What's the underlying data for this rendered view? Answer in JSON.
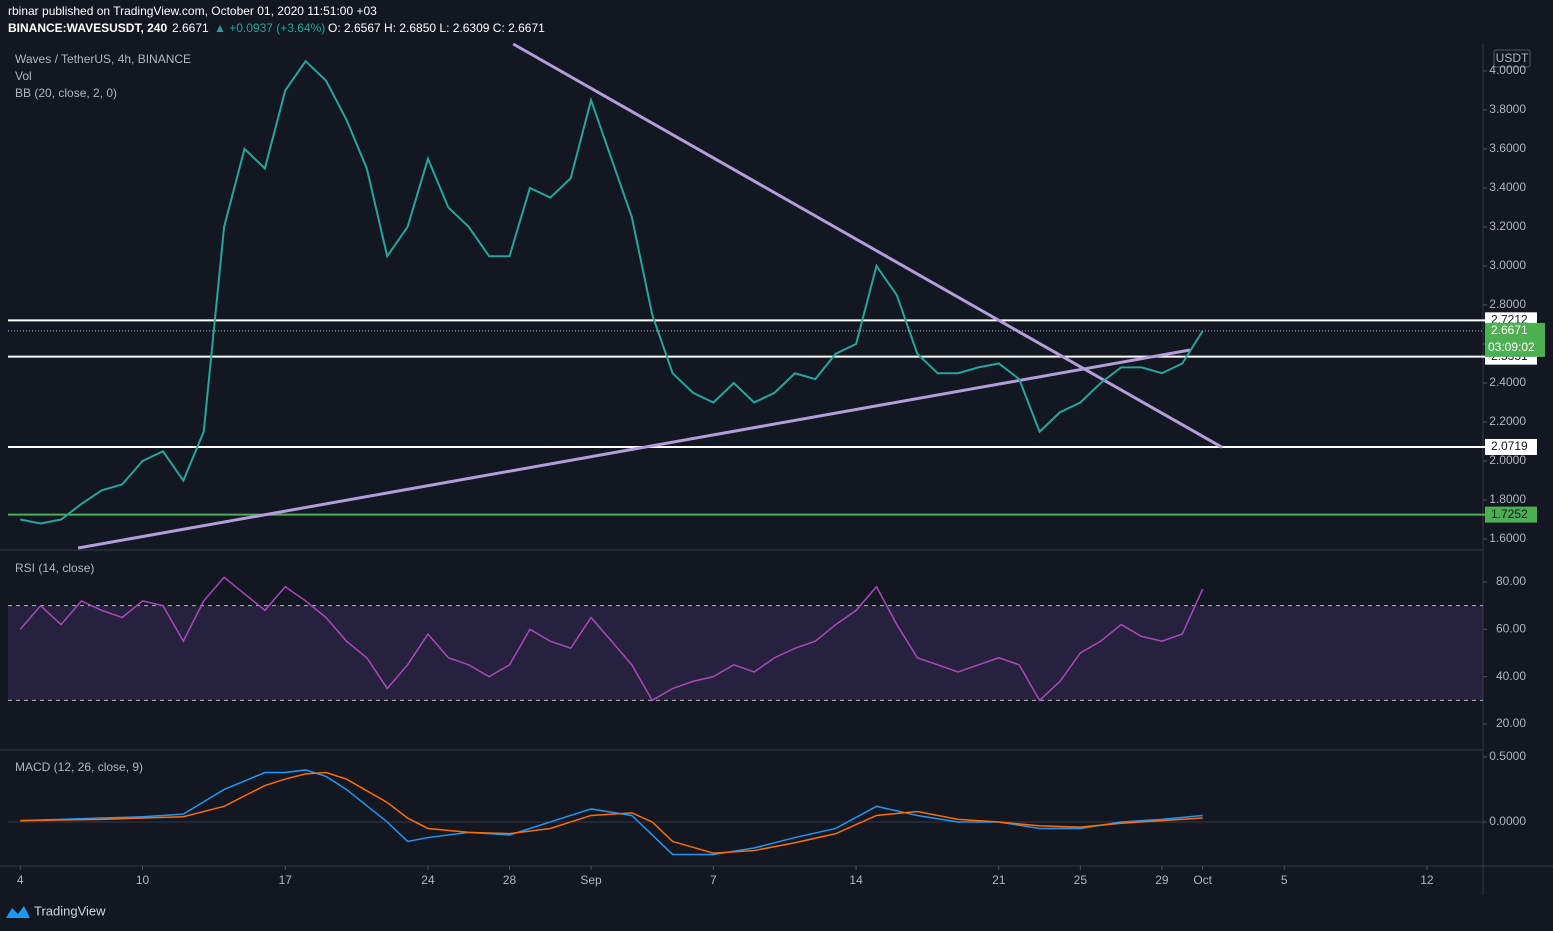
{
  "header": {
    "publisher": "rbinar published on TradingView.com, October 01, 2020 11:51:00 +03",
    "symbol": "BINANCE:WAVESUSDT, 240",
    "last": "2.6671",
    "change": "▲ +0.0937 (+3.64%)",
    "ohlc": "O: 2.6567 H: 2.6850 L: 2.6309 C: 2.6671",
    "currency": "USDT",
    "brand": "TradingView"
  },
  "chart_data": [
    {
      "type": "line",
      "title": "Waves / TetherUS, 4h, BINANCE",
      "legend": [
        "Vol",
        "BB (20, close, 2, 0)"
      ],
      "x": [
        4,
        5,
        6,
        7,
        8,
        9,
        10,
        11,
        12,
        13,
        14,
        15,
        16,
        17,
        18,
        19,
        20,
        21,
        22,
        23,
        24,
        25,
        26,
        27,
        28,
        29,
        30,
        31,
        32,
        33,
        34,
        35,
        36,
        37,
        38,
        39,
        40,
        41,
        42,
        43,
        44,
        45,
        46,
        47,
        48,
        49,
        50,
        51,
        52,
        53,
        54,
        55,
        56,
        57,
        58,
        59,
        60,
        61,
        62
      ],
      "series": [
        {
          "name": "Waves / TetherUS",
          "color": "#26a69a",
          "values": [
            1.7,
            1.68,
            1.7,
            1.78,
            1.85,
            1.88,
            2.0,
            2.05,
            1.9,
            2.15,
            3.2,
            3.6,
            3.5,
            3.9,
            4.05,
            3.95,
            3.75,
            3.5,
            3.05,
            3.2,
            3.55,
            3.3,
            3.2,
            3.05,
            3.05,
            3.4,
            3.35,
            3.45,
            3.85,
            3.55,
            3.25,
            2.75,
            2.45,
            2.35,
            2.3,
            2.4,
            2.3,
            2.35,
            2.45,
            2.42,
            2.55,
            2.6,
            3.0,
            2.85,
            2.55,
            2.45,
            2.45,
            2.48,
            2.5,
            2.42,
            2.15,
            2.25,
            2.3,
            2.4,
            2.48,
            2.48,
            2.45,
            2.5,
            2.6671
          ]
        }
      ],
      "xlim": [
        3.4,
        75.75
      ],
      "xticks": [
        {
          "value": 4,
          "label": "4"
        },
        {
          "value": 10,
          "label": "10"
        },
        {
          "value": 17,
          "label": "17"
        },
        {
          "value": 24,
          "label": "24"
        },
        {
          "value": 28,
          "label": "28"
        },
        {
          "value": 32,
          "label": "Sep"
        },
        {
          "value": 38,
          "label": "7"
        },
        {
          "value": 45,
          "label": "14"
        },
        {
          "value": 52,
          "label": "21"
        },
        {
          "value": 56,
          "label": "25"
        },
        {
          "value": 60,
          "label": "29"
        },
        {
          "value": 62,
          "label": "Oct"
        },
        {
          "value": 66,
          "label": "5"
        },
        {
          "value": 73,
          "label": "12"
        }
      ],
      "ylim": [
        1.554,
        4.138
      ],
      "yticks": [
        {
          "value": 1.6,
          "label": "1.6000"
        },
        {
          "value": 1.8,
          "label": "1.8000"
        },
        {
          "value": 2.0,
          "label": "2.0000"
        },
        {
          "value": 2.2,
          "label": "2.2000"
        },
        {
          "value": 2.4,
          "label": "2.4000"
        },
        {
          "value": 2.6,
          "label": "2.6000"
        },
        {
          "value": 2.8,
          "label": "2.8000"
        },
        {
          "value": 3.0,
          "label": "3.0000"
        },
        {
          "value": 3.2,
          "label": "3.2000"
        },
        {
          "value": 3.4,
          "label": "3.4000"
        },
        {
          "value": 3.6,
          "label": "3.6000"
        },
        {
          "value": 3.8,
          "label": "3.8000"
        },
        {
          "value": 4.0,
          "label": "4.0000"
        }
      ],
      "hlines": [
        {
          "value": 2.7212,
          "color": "#ffffff"
        },
        {
          "value": 2.5351,
          "color": "#ffffff"
        },
        {
          "value": 2.0719,
          "color": "#ffffff"
        },
        {
          "value": 1.7252,
          "color": "#4caf50"
        }
      ],
      "current": {
        "value": 2.6671,
        "countdown": "03:09:02",
        "color": "#4caf50"
      },
      "trendlines": [
        {
          "x": [
            28.18,
            62.95
          ],
          "y": [
            4.138,
            2.07
          ],
          "color": "#b39ddb"
        },
        {
          "x": [
            6.84,
            61.38
          ],
          "y": [
            1.554,
            2.569
          ],
          "color": "#b39ddb"
        }
      ],
      "grid": false
    },
    {
      "type": "line",
      "title": "RSI (14, close)",
      "x": [
        4,
        5,
        6,
        7,
        8,
        9,
        10,
        11,
        12,
        13,
        14,
        15,
        16,
        17,
        18,
        19,
        20,
        21,
        22,
        23,
        24,
        25,
        26,
        27,
        28,
        29,
        30,
        31,
        32,
        33,
        34,
        35,
        36,
        37,
        38,
        39,
        40,
        41,
        42,
        43,
        44,
        45,
        46,
        47,
        48,
        49,
        50,
        51,
        52,
        53,
        54,
        55,
        56,
        57,
        58,
        59,
        60,
        61,
        62
      ],
      "series": [
        {
          "name": "RSI",
          "color": "#ab47bc",
          "values": [
            60,
            70,
            62,
            72,
            68,
            65,
            72,
            70,
            55,
            72,
            82,
            75,
            68,
            78,
            72,
            65,
            55,
            48,
            35,
            45,
            58,
            48,
            45,
            40,
            45,
            60,
            55,
            52,
            65,
            55,
            45,
            30,
            35,
            38,
            40,
            45,
            42,
            48,
            52,
            55,
            62,
            68,
            78,
            62,
            48,
            45,
            42,
            45,
            48,
            45,
            30,
            38,
            50,
            55,
            62,
            57,
            55,
            58,
            77
          ]
        }
      ],
      "ylim": [
        9.86,
        92.25
      ],
      "yticks": [
        {
          "value": 20,
          "label": "20.00"
        },
        {
          "value": 40,
          "label": "40.00"
        },
        {
          "value": 60,
          "label": "60.00"
        },
        {
          "value": 80,
          "label": "80.00"
        }
      ],
      "band": [
        30,
        70
      ],
      "band_color": "#7e57c2"
    },
    {
      "type": "line",
      "title": "MACD (12, 26, close, 9)",
      "x": [
        4,
        6,
        8,
        10,
        12,
        14,
        16,
        17,
        18,
        19,
        20,
        22,
        23,
        24,
        26,
        28,
        30,
        32,
        34,
        35,
        36,
        38,
        40,
        42,
        44,
        46,
        48,
        50,
        52,
        54,
        56,
        58,
        60,
        62
      ],
      "series": [
        {
          "name": "MACD",
          "color": "#2196f3",
          "values": [
            0.01,
            0.02,
            0.03,
            0.04,
            0.06,
            0.25,
            0.38,
            0.38,
            0.4,
            0.35,
            0.25,
            0.0,
            -0.15,
            -0.12,
            -0.08,
            -0.1,
            0.0,
            0.1,
            0.05,
            -0.1,
            -0.25,
            -0.25,
            -0.2,
            -0.12,
            -0.05,
            0.12,
            0.05,
            0.0,
            0.0,
            -0.05,
            -0.05,
            0.0,
            0.02,
            0.05
          ]
        },
        {
          "name": "Signal",
          "color": "#ff6d00",
          "values": [
            0.01,
            0.015,
            0.02,
            0.03,
            0.04,
            0.12,
            0.28,
            0.33,
            0.37,
            0.38,
            0.33,
            0.15,
            0.03,
            -0.05,
            -0.08,
            -0.09,
            -0.05,
            0.05,
            0.07,
            0.0,
            -0.15,
            -0.24,
            -0.22,
            -0.16,
            -0.09,
            0.05,
            0.08,
            0.02,
            0.0,
            -0.03,
            -0.04,
            -0.01,
            0.01,
            0.03
          ]
        }
      ],
      "ylim": [
        -0.331,
        0.538
      ],
      "yticks": [
        {
          "value": 0,
          "label": "0.0000"
        },
        {
          "value": 0.5,
          "label": "0.5000"
        }
      ]
    }
  ]
}
